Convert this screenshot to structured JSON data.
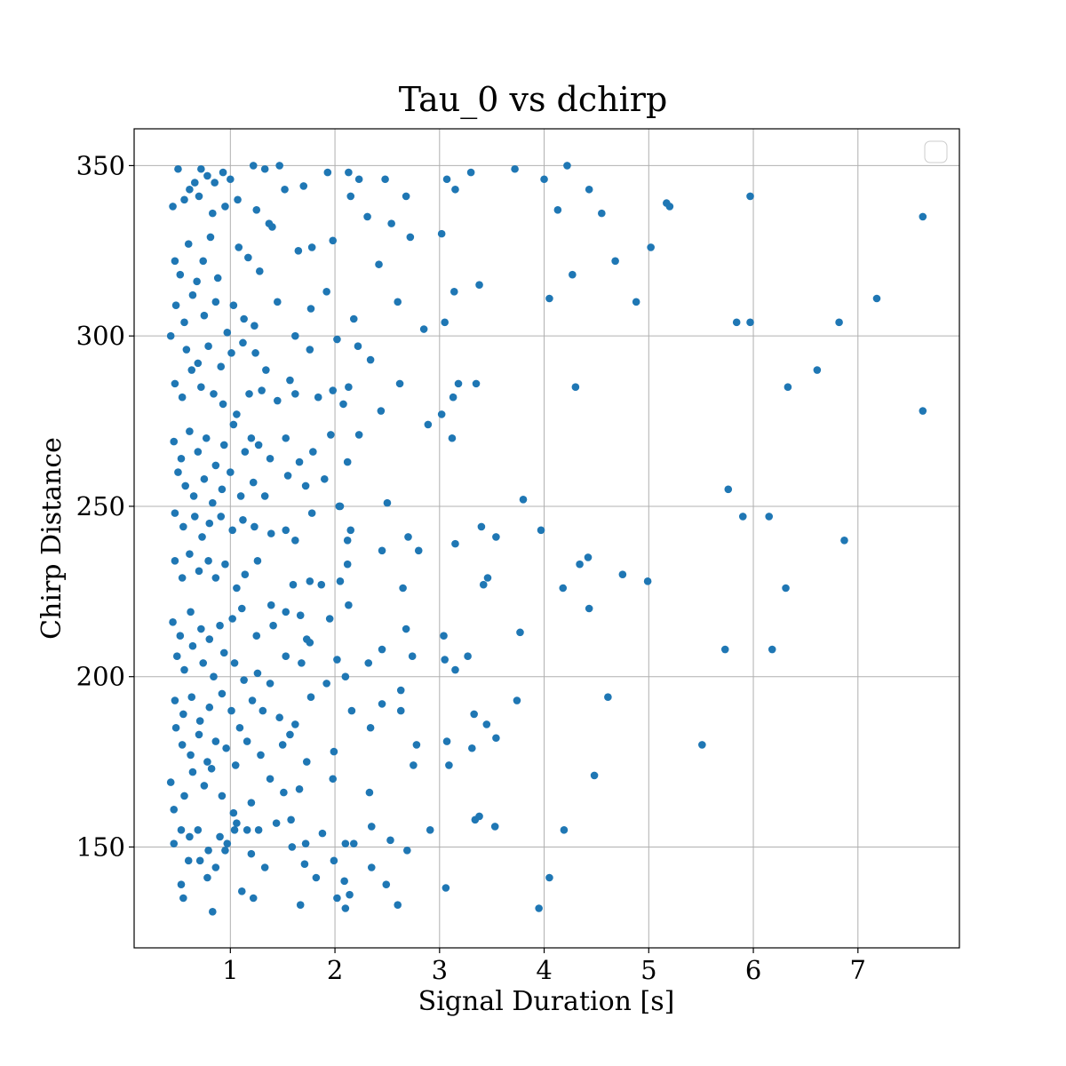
{
  "chart_data": {
    "type": "scatter",
    "title": "Tau_0 vs dchirp",
    "xlabel": "Signal Duration [s]",
    "ylabel": "Chirp Distance",
    "xlim": [
      0.08,
      7.97
    ],
    "ylim": [
      120.4,
      360.8
    ],
    "xticks": [
      1,
      2,
      3,
      4,
      5,
      6,
      7
    ],
    "yticks": [
      150,
      200,
      250,
      300,
      350
    ],
    "grid": true,
    "legend": "top-right (empty)",
    "marker_color": "#1f77b4",
    "points": [
      [
        0.5,
        349
      ],
      [
        0.61,
        343
      ],
      [
        0.66,
        345
      ],
      [
        0.72,
        349
      ],
      [
        0.78,
        347
      ],
      [
        0.85,
        345
      ],
      [
        0.93,
        348
      ],
      [
        1.0,
        346
      ],
      [
        1.22,
        350
      ],
      [
        1.33,
        349
      ],
      [
        1.47,
        350
      ],
      [
        0.45,
        338
      ],
      [
        0.56,
        340
      ],
      [
        0.7,
        341
      ],
      [
        0.83,
        336
      ],
      [
        0.95,
        338
      ],
      [
        1.07,
        340
      ],
      [
        1.25,
        337
      ],
      [
        1.37,
        333
      ],
      [
        1.52,
        343
      ],
      [
        1.7,
        344
      ],
      [
        1.93,
        348
      ],
      [
        2.13,
        348
      ],
      [
        2.23,
        346
      ],
      [
        2.48,
        346
      ],
      [
        2.68,
        341
      ],
      [
        3.07,
        346
      ],
      [
        3.3,
        348
      ],
      [
        3.72,
        349
      ],
      [
        4.0,
        346
      ],
      [
        4.22,
        350
      ],
      [
        4.43,
        343
      ],
      [
        5.17,
        339
      ],
      [
        5.97,
        341
      ],
      [
        7.62,
        335
      ],
      [
        0.47,
        322
      ],
      [
        0.52,
        318
      ],
      [
        0.6,
        327
      ],
      [
        0.68,
        316
      ],
      [
        0.74,
        322
      ],
      [
        0.81,
        329
      ],
      [
        0.88,
        317
      ],
      [
        1.08,
        326
      ],
      [
        1.17,
        323
      ],
      [
        1.28,
        319
      ],
      [
        1.4,
        332
      ],
      [
        1.65,
        325
      ],
      [
        1.78,
        326
      ],
      [
        1.98,
        328
      ],
      [
        2.15,
        341
      ],
      [
        2.31,
        335
      ],
      [
        2.54,
        333
      ],
      [
        2.72,
        329
      ],
      [
        3.02,
        330
      ],
      [
        3.15,
        343
      ],
      [
        4.13,
        337
      ],
      [
        4.55,
        336
      ],
      [
        4.68,
        322
      ],
      [
        5.02,
        326
      ],
      [
        5.2,
        338
      ],
      [
        0.48,
        309
      ],
      [
        0.56,
        304
      ],
      [
        0.64,
        312
      ],
      [
        0.75,
        306
      ],
      [
        0.86,
        310
      ],
      [
        0.97,
        301
      ],
      [
        1.03,
        309
      ],
      [
        1.13,
        305
      ],
      [
        1.23,
        303
      ],
      [
        1.45,
        310
      ],
      [
        1.62,
        300
      ],
      [
        1.77,
        308
      ],
      [
        1.92,
        313
      ],
      [
        2.18,
        305
      ],
      [
        2.42,
        321
      ],
      [
        2.6,
        310
      ],
      [
        2.85,
        302
      ],
      [
        3.05,
        304
      ],
      [
        3.14,
        313
      ],
      [
        3.38,
        315
      ],
      [
        4.05,
        311
      ],
      [
        4.27,
        318
      ],
      [
        4.88,
        310
      ],
      [
        5.84,
        304
      ],
      [
        5.97,
        304
      ],
      [
        6.82,
        304
      ],
      [
        7.18,
        311
      ],
      [
        0.43,
        300
      ],
      [
        0.58,
        296
      ],
      [
        0.69,
        292
      ],
      [
        0.79,
        297
      ],
      [
        0.91,
        291
      ],
      [
        1.01,
        295
      ],
      [
        1.12,
        298
      ],
      [
        1.24,
        295
      ],
      [
        1.34,
        290
      ],
      [
        1.57,
        287
      ],
      [
        1.76,
        296
      ],
      [
        2.02,
        299
      ],
      [
        2.22,
        297
      ],
      [
        2.34,
        293
      ],
      [
        2.62,
        286
      ],
      [
        3.02,
        277
      ],
      [
        3.18,
        286
      ],
      [
        3.35,
        286
      ],
      [
        4.3,
        285
      ],
      [
        6.33,
        285
      ],
      [
        6.61,
        290
      ],
      [
        0.47,
        286
      ],
      [
        0.54,
        282
      ],
      [
        0.63,
        290
      ],
      [
        0.72,
        285
      ],
      [
        0.84,
        283
      ],
      [
        0.93,
        280
      ],
      [
        1.06,
        277
      ],
      [
        1.18,
        283
      ],
      [
        1.3,
        284
      ],
      [
        1.45,
        281
      ],
      [
        1.62,
        283
      ],
      [
        1.84,
        282
      ],
      [
        1.98,
        284
      ],
      [
        2.13,
        285
      ],
      [
        2.08,
        280
      ],
      [
        2.44,
        278
      ],
      [
        2.89,
        274
      ],
      [
        3.13,
        282
      ],
      [
        7.62,
        278
      ],
      [
        0.46,
        269
      ],
      [
        0.53,
        264
      ],
      [
        0.61,
        272
      ],
      [
        0.69,
        266
      ],
      [
        0.77,
        270
      ],
      [
        0.86,
        262
      ],
      [
        0.94,
        268
      ],
      [
        1.03,
        274
      ],
      [
        1.14,
        266
      ],
      [
        1.2,
        270
      ],
      [
        1.27,
        268
      ],
      [
        1.38,
        264
      ],
      [
        1.53,
        270
      ],
      [
        1.66,
        263
      ],
      [
        1.79,
        266
      ],
      [
        1.96,
        271
      ],
      [
        2.12,
        263
      ],
      [
        2.23,
        271
      ],
      [
        3.12,
        270
      ],
      [
        0.5,
        260
      ],
      [
        0.57,
        256
      ],
      [
        0.65,
        253
      ],
      [
        0.75,
        258
      ],
      [
        0.83,
        251
      ],
      [
        0.92,
        255
      ],
      [
        1.0,
        260
      ],
      [
        1.1,
        253
      ],
      [
        1.22,
        257
      ],
      [
        1.33,
        253
      ],
      [
        1.55,
        259
      ],
      [
        1.72,
        256
      ],
      [
        1.9,
        258
      ],
      [
        2.04,
        250
      ],
      [
        2.5,
        251
      ],
      [
        3.8,
        252
      ],
      [
        5.76,
        255
      ],
      [
        0.47,
        248
      ],
      [
        0.55,
        244
      ],
      [
        0.66,
        247
      ],
      [
        0.73,
        241
      ],
      [
        0.8,
        245
      ],
      [
        0.91,
        247
      ],
      [
        1.02,
        243
      ],
      [
        1.12,
        246
      ],
      [
        1.23,
        244
      ],
      [
        1.39,
        242
      ],
      [
        1.53,
        243
      ],
      [
        1.62,
        240
      ],
      [
        1.78,
        248
      ],
      [
        2.05,
        250
      ],
      [
        2.12,
        240
      ],
      [
        2.15,
        243
      ],
      [
        2.45,
        237
      ],
      [
        2.7,
        241
      ],
      [
        2.8,
        237
      ],
      [
        3.15,
        239
      ],
      [
        3.4,
        244
      ],
      [
        3.54,
        241
      ],
      [
        3.97,
        243
      ],
      [
        5.9,
        247
      ],
      [
        6.15,
        247
      ],
      [
        6.87,
        240
      ],
      [
        0.47,
        234
      ],
      [
        0.54,
        229
      ],
      [
        0.61,
        236
      ],
      [
        0.7,
        231
      ],
      [
        0.79,
        234
      ],
      [
        0.86,
        229
      ],
      [
        0.95,
        233
      ],
      [
        1.06,
        226
      ],
      [
        1.14,
        230
      ],
      [
        1.26,
        234
      ],
      [
        1.39,
        221
      ],
      [
        1.6,
        227
      ],
      [
        1.76,
        228
      ],
      [
        1.87,
        227
      ],
      [
        2.05,
        228
      ],
      [
        2.12,
        233
      ],
      [
        2.65,
        226
      ],
      [
        3.42,
        227
      ],
      [
        3.46,
        229
      ],
      [
        4.18,
        226
      ],
      [
        4.34,
        233
      ],
      [
        4.42,
        235
      ],
      [
        4.75,
        230
      ],
      [
        4.99,
        228
      ],
      [
        6.31,
        226
      ],
      [
        0.45,
        216
      ],
      [
        0.52,
        212
      ],
      [
        0.62,
        219
      ],
      [
        0.72,
        214
      ],
      [
        0.8,
        211
      ],
      [
        0.9,
        215
      ],
      [
        1.02,
        217
      ],
      [
        1.11,
        220
      ],
      [
        1.25,
        212
      ],
      [
        1.41,
        215
      ],
      [
        1.53,
        219
      ],
      [
        1.67,
        218
      ],
      [
        1.73,
        211
      ],
      [
        1.95,
        217
      ],
      [
        2.13,
        221
      ],
      [
        2.68,
        214
      ],
      [
        3.04,
        212
      ],
      [
        3.77,
        213
      ],
      [
        4.43,
        220
      ],
      [
        0.49,
        206
      ],
      [
        0.56,
        202
      ],
      [
        0.64,
        209
      ],
      [
        0.74,
        204
      ],
      [
        0.84,
        200
      ],
      [
        0.94,
        207
      ],
      [
        1.04,
        204
      ],
      [
        1.13,
        199
      ],
      [
        1.26,
        201
      ],
      [
        1.38,
        198
      ],
      [
        1.53,
        206
      ],
      [
        1.68,
        204
      ],
      [
        1.76,
        210
      ],
      [
        2.02,
        205
      ],
      [
        2.1,
        200
      ],
      [
        2.32,
        204
      ],
      [
        2.45,
        208
      ],
      [
        2.74,
        206
      ],
      [
        3.05,
        205
      ],
      [
        3.15,
        202
      ],
      [
        3.27,
        206
      ],
      [
        5.73,
        208
      ],
      [
        6.18,
        208
      ],
      [
        0.47,
        193
      ],
      [
        0.55,
        189
      ],
      [
        0.63,
        194
      ],
      [
        0.71,
        187
      ],
      [
        0.8,
        191
      ],
      [
        0.92,
        195
      ],
      [
        1.01,
        190
      ],
      [
        1.09,
        185
      ],
      [
        1.21,
        193
      ],
      [
        1.31,
        190
      ],
      [
        1.47,
        188
      ],
      [
        1.62,
        186
      ],
      [
        1.77,
        194
      ],
      [
        1.92,
        198
      ],
      [
        2.16,
        190
      ],
      [
        2.45,
        192
      ],
      [
        2.63,
        196
      ],
      [
        3.33,
        189
      ],
      [
        3.45,
        186
      ],
      [
        3.74,
        193
      ],
      [
        4.61,
        194
      ],
      [
        0.48,
        185
      ],
      [
        0.54,
        180
      ],
      [
        0.62,
        177
      ],
      [
        0.7,
        183
      ],
      [
        0.78,
        175
      ],
      [
        0.86,
        181
      ],
      [
        0.96,
        179
      ],
      [
        1.05,
        174
      ],
      [
        1.16,
        181
      ],
      [
        1.29,
        177
      ],
      [
        1.5,
        180
      ],
      [
        1.57,
        183
      ],
      [
        1.73,
        175
      ],
      [
        1.99,
        178
      ],
      [
        2.34,
        185
      ],
      [
        2.63,
        190
      ],
      [
        2.78,
        180
      ],
      [
        2.75,
        174
      ],
      [
        3.07,
        181
      ],
      [
        3.09,
        174
      ],
      [
        3.31,
        179
      ],
      [
        3.54,
        182
      ],
      [
        4.48,
        171
      ],
      [
        5.51,
        180
      ],
      [
        0.43,
        169
      ],
      [
        0.56,
        165
      ],
      [
        0.64,
        172
      ],
      [
        0.75,
        168
      ],
      [
        0.82,
        173
      ],
      [
        0.92,
        165
      ],
      [
        1.03,
        160
      ],
      [
        1.2,
        163
      ],
      [
        1.38,
        170
      ],
      [
        1.51,
        166
      ],
      [
        1.66,
        167
      ],
      [
        1.98,
        170
      ],
      [
        2.33,
        166
      ],
      [
        0.46,
        161
      ],
      [
        0.53,
        155
      ],
      [
        0.61,
        153
      ],
      [
        0.69,
        155
      ],
      [
        0.79,
        149
      ],
      [
        0.9,
        153
      ],
      [
        0.97,
        151
      ],
      [
        1.06,
        157
      ],
      [
        1.16,
        155
      ],
      [
        1.27,
        155
      ],
      [
        1.44,
        157
      ],
      [
        1.58,
        158
      ],
      [
        1.72,
        151
      ],
      [
        1.88,
        154
      ],
      [
        2.1,
        151
      ],
      [
        2.18,
        151
      ],
      [
        2.35,
        156
      ],
      [
        2.53,
        152
      ],
      [
        2.91,
        155
      ],
      [
        3.34,
        158
      ],
      [
        3.38,
        159
      ],
      [
        3.53,
        156
      ],
      [
        4.19,
        155
      ],
      [
        0.46,
        151
      ],
      [
        0.53,
        139
      ],
      [
        0.6,
        146
      ],
      [
        0.71,
        146
      ],
      [
        0.78,
        141
      ],
      [
        0.86,
        144
      ],
      [
        0.95,
        149
      ],
      [
        1.04,
        155
      ],
      [
        1.11,
        137
      ],
      [
        1.2,
        148
      ],
      [
        1.33,
        144
      ],
      [
        1.59,
        150
      ],
      [
        1.71,
        145
      ],
      [
        1.82,
        141
      ],
      [
        1.99,
        146
      ],
      [
        2.09,
        140
      ],
      [
        2.14,
        136
      ],
      [
        2.35,
        144
      ],
      [
        2.49,
        139
      ],
      [
        2.69,
        149
      ],
      [
        3.06,
        138
      ],
      [
        4.05,
        141
      ],
      [
        0.55,
        135
      ],
      [
        0.83,
        131
      ],
      [
        1.22,
        135
      ],
      [
        1.67,
        133
      ],
      [
        2.02,
        135
      ],
      [
        2.1,
        132
      ],
      [
        2.6,
        133
      ],
      [
        3.95,
        132
      ]
    ]
  }
}
